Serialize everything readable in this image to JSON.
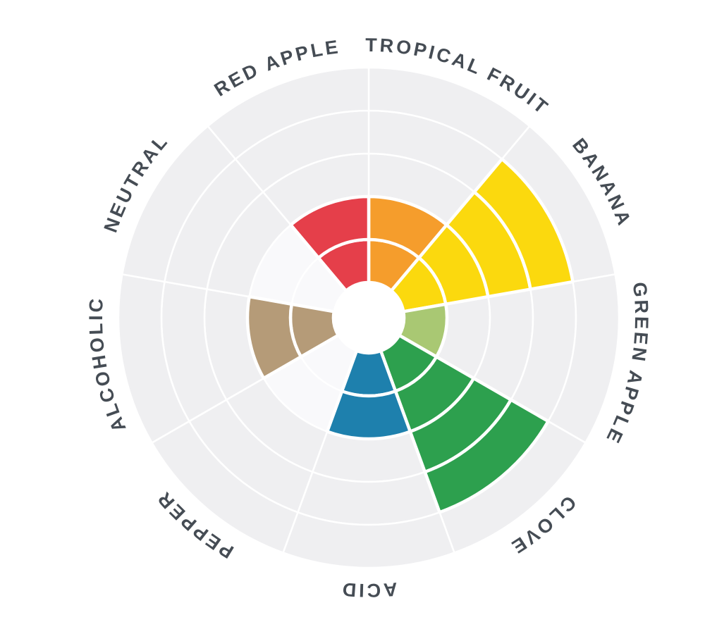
{
  "page": {
    "background": "#ffffff"
  },
  "chart_data": {
    "type": "bar",
    "subtype": "radial-polar-flavor-wheel",
    "categories": [
      "TROPICAL FRUIT",
      "BANANA",
      "GREEN APPLE",
      "CLOVE",
      "ACID",
      "PEPPER",
      "ALCOHOLIC",
      "NEUTRAL",
      "RED APPLE"
    ],
    "values": [
      2,
      4,
      1,
      4,
      2,
      0,
      2,
      0,
      2
    ],
    "series_colors": [
      "#f59d2c",
      "#fbd90e",
      "#a9c873",
      "#2da04e",
      "#1e80ad",
      null,
      "#b59b78",
      null,
      "#e53f4a"
    ],
    "scale": {
      "min": 0,
      "max": 5,
      "rings": 5
    },
    "layout": {
      "start_angle_deg": 0,
      "direction": "clockwise",
      "sector_deg": 40,
      "grid": true,
      "legend": false,
      "center_hole": true
    },
    "style": {
      "ring_fill": "#efeff1",
      "empty_inner_fill": "#f9f9fb",
      "separator": "#ffffff",
      "label_color": "#454c54",
      "hole_fill": "#ffffff"
    }
  }
}
